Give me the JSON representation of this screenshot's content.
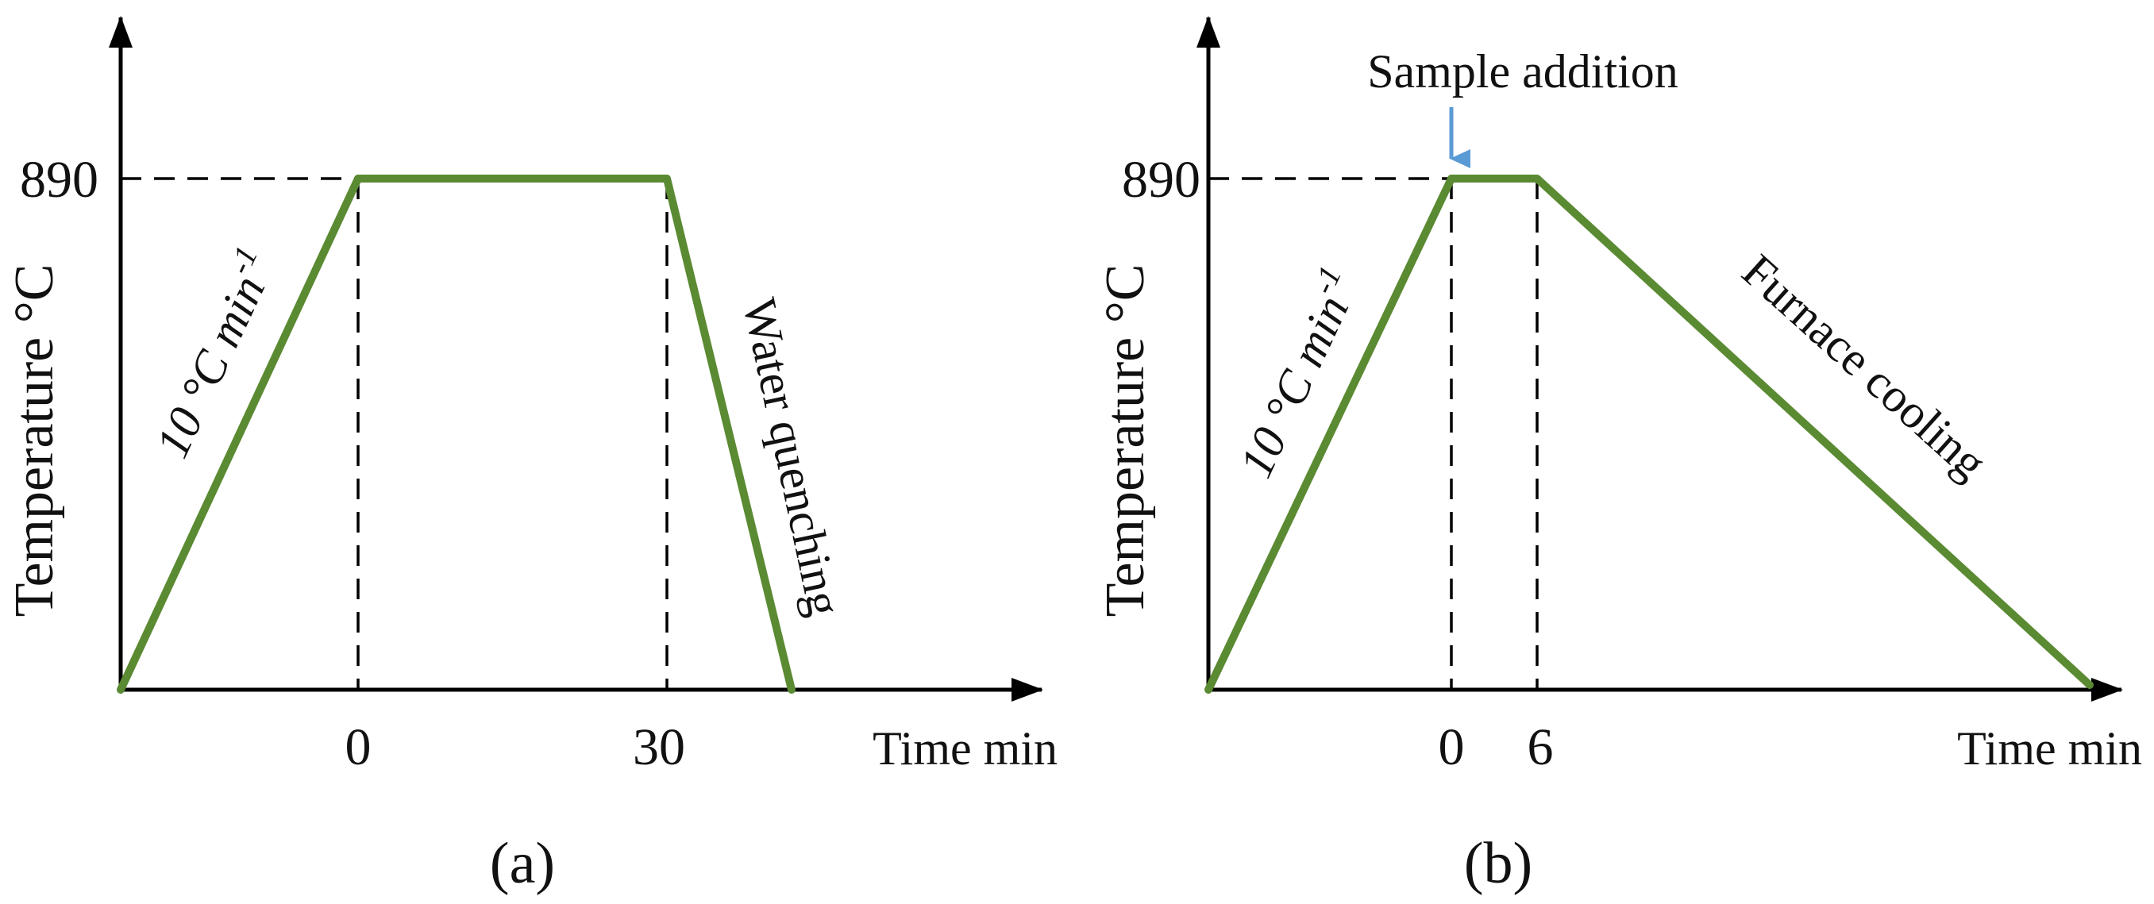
{
  "accent_color": "#5a8a32",
  "arrow_color": "#5b9bd5",
  "chart_data": [
    {
      "type": "line",
      "panel_label": "(a)",
      "ylabel": "Temperature °C",
      "xlabel": "Time min",
      "y_ticks": [
        "890"
      ],
      "x_ticks": [
        "0",
        "30"
      ],
      "rate_label": "10 °C min",
      "rate_superscript": "-1",
      "cooling_label": "Water quenching",
      "grid": false,
      "legend": "none",
      "series": [
        {
          "x": [
            "start",
            "0",
            "30",
            "end"
          ],
          "y": [
            "ambient",
            890,
            890,
            "ambient"
          ]
        }
      ]
    },
    {
      "type": "line",
      "panel_label": "(b)",
      "ylabel": "Temperature °C",
      "xlabel": "Time min",
      "y_ticks": [
        "890"
      ],
      "x_ticks": [
        "0",
        "6"
      ],
      "rate_label": "10 °C min",
      "rate_superscript": "-1",
      "cooling_label": "Furnace cooling",
      "annotation": "Sample addition",
      "grid": false,
      "legend": "none",
      "series": [
        {
          "x": [
            "start",
            "0",
            "6",
            "end"
          ],
          "y": [
            "ambient",
            890,
            890,
            "ambient"
          ]
        }
      ]
    }
  ]
}
